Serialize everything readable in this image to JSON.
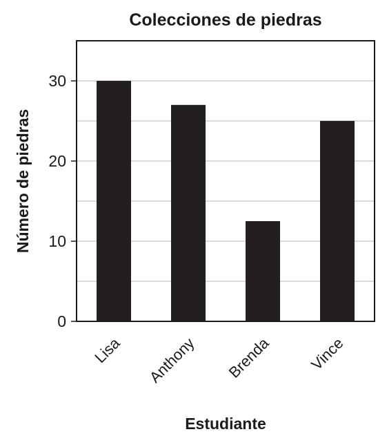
{
  "chart_data": {
    "type": "bar",
    "title": "Colecciones de piedras",
    "xlabel": "Estudiante",
    "ylabel": "Número de piedras",
    "categories": [
      "Lisa",
      "Anthony",
      "Brenda",
      "Vince"
    ],
    "values": [
      30,
      27,
      12.5,
      25
    ],
    "ylim": [
      0,
      35
    ],
    "yticks": [
      0,
      10,
      20,
      30
    ],
    "grid": true,
    "bar_color": "#231f20",
    "grid_color": "#b3b3b3",
    "axis_color": "#1a1a1a"
  }
}
